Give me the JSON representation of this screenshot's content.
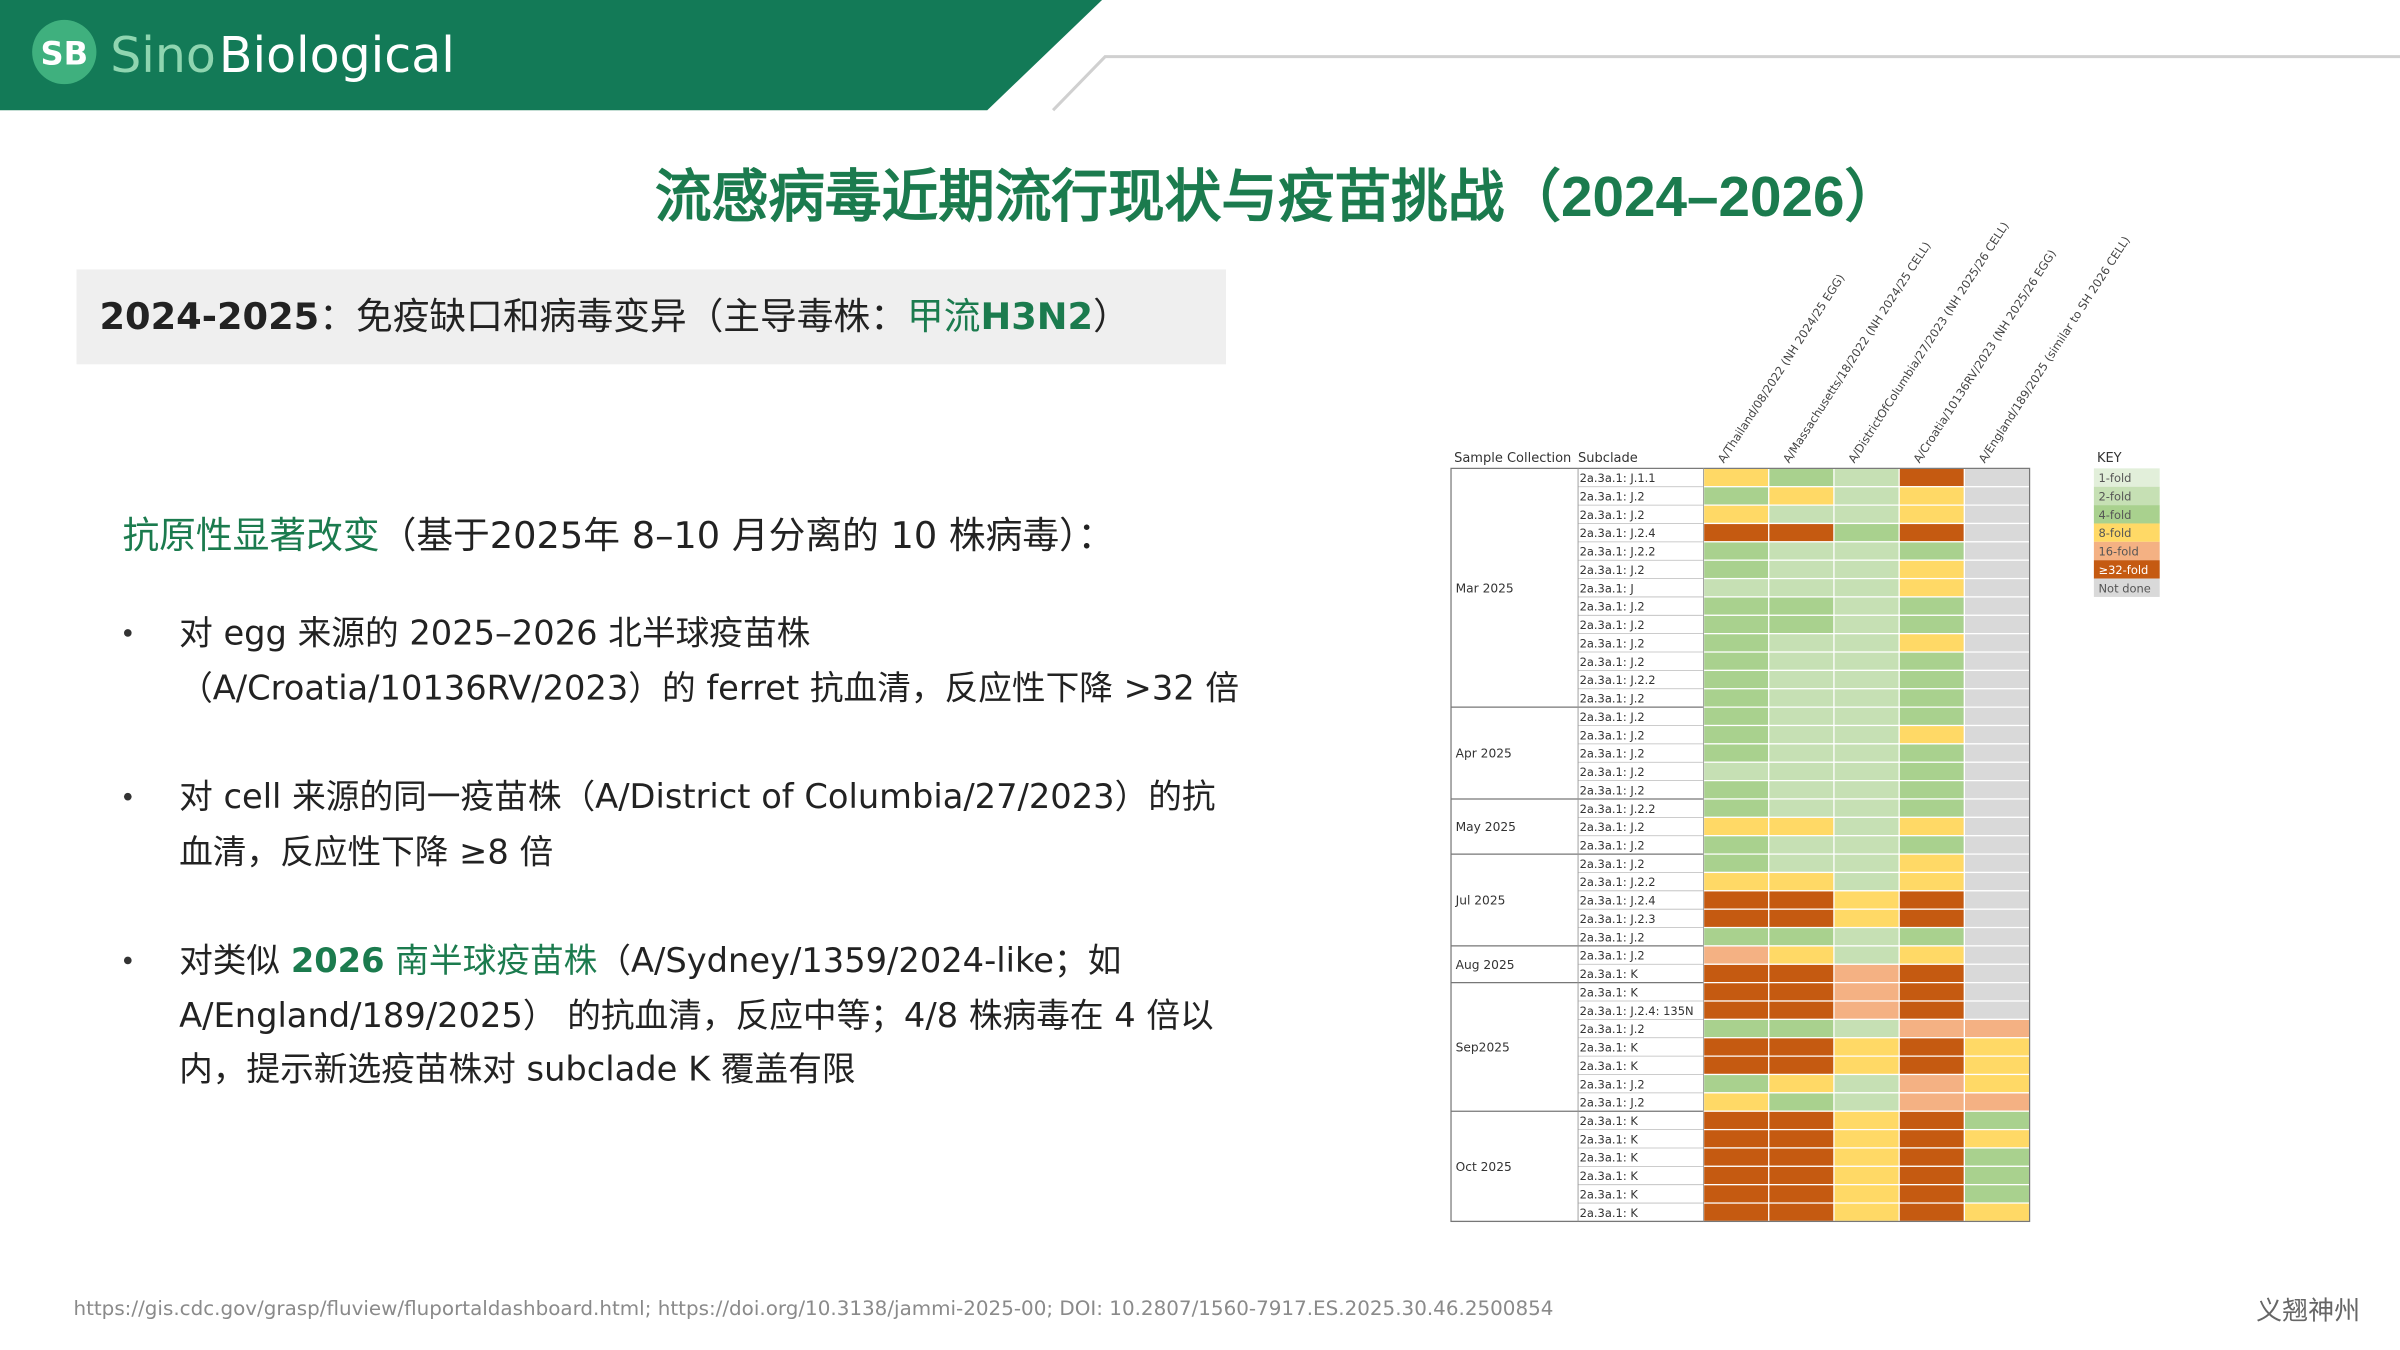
{
  "header": {
    "logo_badge": "SB",
    "logo_sino": "Sino",
    "logo_bio": "Biological"
  },
  "title": {
    "text": "流感病毒近期流行现状与疫苗挑战（",
    "years": "2024–2026",
    "close": "）"
  },
  "banner": [
    {
      "text": "2024-2025",
      "style": "bold"
    },
    {
      "text": "：免疫缺口和病毒变异（主导毒株：",
      "style": "normal"
    },
    {
      "text": "甲流",
      "style": "green"
    },
    {
      "text": "H3N2",
      "style": "bold-green"
    },
    {
      "text": "）",
      "style": "normal"
    }
  ],
  "subheading": [
    {
      "text": "抗原性显著改变",
      "style": "green"
    },
    {
      "text": "（基于2025年 8–10 月分离的 10 株病毒）：",
      "style": "normal"
    }
  ],
  "bullets": [
    {
      "lines": [
        [
          {
            "text": "对 egg 来源的 2025–2026 北半球疫苗株",
            "style": "normal"
          }
        ],
        [
          {
            "text": "（A/Croatia/10136RV/2023）的 ferret 抗血清，反应性下降 >32 倍",
            "style": "normal"
          }
        ]
      ]
    },
    {
      "lines": [
        [
          {
            "text": "对 cell 来源的同一疫苗株（A/District of Columbia/27/2023）的抗",
            "style": "normal"
          }
        ],
        [
          {
            "text": "血清，反应性下降 ≥8 倍",
            "style": "normal"
          }
        ]
      ]
    },
    {
      "lines": [
        [
          {
            "text": "对类似 ",
            "style": "normal"
          },
          {
            "text": "2026",
            "style": "bold-green"
          },
          {
            "text": " 南半球疫苗株",
            "style": "green"
          },
          {
            "text": "（A/Sydney/1359/2024-like；如",
            "style": "normal"
          }
        ],
        [
          {
            "text": "A/England/189/2025） 的抗血清，反应中等；4/8 株病毒在 4 倍以",
            "style": "normal"
          }
        ],
        [
          {
            "text": "内，提示新选疫苗株对 subclade K 覆盖有限",
            "style": "normal"
          }
        ]
      ]
    }
  ],
  "heatmap": {
    "col_sample": "Sample Collection",
    "col_subclade": "Subclade",
    "columns": [
      "A/Thailand/08/2022 (NH 2024/25 EGG)",
      "A/Massachusetts/18/2022 (NH 2024/25 CELL)",
      "A/DistrictOfColumbia/27/2023 (NH 2025/26 CELL)",
      "A/Croatia/10136RV/2023 (NH 2025/26 EGG)",
      "A/England/189/2025 (similar to SH 2026 CELL)"
    ],
    "key_title": "KEY",
    "key": [
      {
        "label": "1-fold",
        "color": "#e2efda"
      },
      {
        "label": "2-fold",
        "color": "#c6e0b4"
      },
      {
        "label": "4-fold",
        "color": "#a9d18e"
      },
      {
        "label": "8-fold",
        "color": "#ffd966"
      },
      {
        "label": "16-fold",
        "color": "#f4b183"
      },
      {
        "label": "≥32-fold",
        "color": "#c55a11"
      },
      {
        "label": "Not done",
        "color": "#d9d9d9"
      }
    ],
    "groups": [
      {
        "label": "Mar 2025",
        "rows": [
          {
            "subclade": "2a.3a.1: J.1.1",
            "cells": [
              3,
              2,
              1,
              5,
              6
            ]
          },
          {
            "subclade": "2a.3a.1: J.2",
            "cells": [
              2,
              3,
              1,
              3,
              6
            ]
          },
          {
            "subclade": "2a.3a.1: J.2",
            "cells": [
              3,
              1,
              1,
              3,
              6
            ]
          },
          {
            "subclade": "2a.3a.1: J.2.4",
            "cells": [
              5,
              5,
              2,
              5,
              6
            ]
          },
          {
            "subclade": "2a.3a.1: J.2.2",
            "cells": [
              2,
              1,
              1,
              2,
              6
            ]
          },
          {
            "subclade": "2a.3a.1: J.2",
            "cells": [
              2,
              1,
              1,
              3,
              6
            ]
          },
          {
            "subclade": "2a.3a.1: J",
            "cells": [
              1,
              1,
              1,
              3,
              6
            ]
          },
          {
            "subclade": "2a.3a.1: J.2",
            "cells": [
              2,
              2,
              1,
              2,
              6
            ]
          },
          {
            "subclade": "2a.3a.1: J.2",
            "cells": [
              2,
              2,
              1,
              2,
              6
            ]
          },
          {
            "subclade": "2a.3a.1: J.2",
            "cells": [
              2,
              1,
              1,
              3,
              6
            ]
          },
          {
            "subclade": "2a.3a.1: J.2",
            "cells": [
              2,
              1,
              1,
              2,
              6
            ]
          },
          {
            "subclade": "2a.3a.1: J.2.2",
            "cells": [
              2,
              1,
              1,
              2,
              6
            ]
          },
          {
            "subclade": "2a.3a.1: J.2",
            "cells": [
              2,
              1,
              1,
              2,
              6
            ]
          }
        ]
      },
      {
        "label": "Apr 2025",
        "rows": [
          {
            "subclade": "2a.3a.1: J.2",
            "cells": [
              2,
              1,
              1,
              2,
              6
            ]
          },
          {
            "subclade": "2a.3a.1: J.2",
            "cells": [
              2,
              1,
              1,
              3,
              6
            ]
          },
          {
            "subclade": "2a.3a.1: J.2",
            "cells": [
              2,
              1,
              1,
              2,
              6
            ]
          },
          {
            "subclade": "2a.3a.1: J.2",
            "cells": [
              1,
              1,
              1,
              2,
              6
            ]
          },
          {
            "subclade": "2a.3a.1: J.2",
            "cells": [
              2,
              1,
              1,
              2,
              6
            ]
          }
        ]
      },
      {
        "label": "May 2025",
        "rows": [
          {
            "subclade": "2a.3a.1: J.2.2",
            "cells": [
              2,
              1,
              1,
              2,
              6
            ]
          },
          {
            "subclade": "2a.3a.1: J.2",
            "cells": [
              3,
              3,
              1,
              3,
              6
            ]
          },
          {
            "subclade": "2a.3a.1: J.2",
            "cells": [
              2,
              1,
              1,
              2,
              6
            ]
          }
        ]
      },
      {
        "label": "Jul 2025",
        "rows": [
          {
            "subclade": "2a.3a.1: J.2",
            "cells": [
              2,
              1,
              1,
              3,
              6
            ]
          },
          {
            "subclade": "2a.3a.1: J.2.2",
            "cells": [
              3,
              3,
              1,
              3,
              6
            ]
          },
          {
            "subclade": "2a.3a.1: J.2.4",
            "cells": [
              5,
              5,
              3,
              5,
              6
            ]
          },
          {
            "subclade": "2a.3a.1: J.2.3",
            "cells": [
              5,
              5,
              3,
              5,
              6
            ]
          },
          {
            "subclade": "2a.3a.1: J.2",
            "cells": [
              2,
              2,
              1,
              2,
              6
            ]
          }
        ]
      },
      {
        "label": "Aug 2025",
        "rows": [
          {
            "subclade": "2a.3a.1: J.2",
            "cells": [
              4,
              3,
              1,
              3,
              6
            ]
          },
          {
            "subclade": "2a.3a.1: K",
            "cells": [
              5,
              5,
              4,
              5,
              6
            ]
          }
        ]
      },
      {
        "label": "Sep2025",
        "rows": [
          {
            "subclade": "2a.3a.1: K",
            "cells": [
              5,
              5,
              4,
              5,
              6
            ]
          },
          {
            "subclade": "2a.3a.1: J.2.4: 135N",
            "cells": [
              5,
              5,
              4,
              5,
              6
            ]
          },
          {
            "subclade": "2a.3a.1: J.2",
            "cells": [
              2,
              2,
              1,
              4,
              4
            ]
          },
          {
            "subclade": "2a.3a.1: K",
            "cells": [
              5,
              5,
              3,
              5,
              3
            ]
          },
          {
            "subclade": "2a.3a.1: K",
            "cells": [
              5,
              5,
              3,
              5,
              3
            ]
          },
          {
            "subclade": "2a.3a.1: J.2",
            "cells": [
              2,
              3,
              1,
              4,
              3
            ]
          },
          {
            "subclade": "2a.3a.1: J.2",
            "cells": [
              3,
              2,
              1,
              4,
              4
            ]
          }
        ]
      },
      {
        "label": "Oct 2025",
        "rows": [
          {
            "subclade": "2a.3a.1: K",
            "cells": [
              5,
              5,
              3,
              5,
              2
            ]
          },
          {
            "subclade": "2a.3a.1: K",
            "cells": [
              5,
              5,
              3,
              5,
              3
            ]
          },
          {
            "subclade": "2a.3a.1: K",
            "cells": [
              5,
              5,
              3,
              5,
              2
            ]
          },
          {
            "subclade": "2a.3a.1: K",
            "cells": [
              5,
              5,
              3,
              5,
              2
            ]
          },
          {
            "subclade": "2a.3a.1: K",
            "cells": [
              5,
              5,
              3,
              5,
              2
            ]
          },
          {
            "subclade": "2a.3a.1: K",
            "cells": [
              5,
              5,
              3,
              5,
              3
            ]
          }
        ]
      }
    ]
  },
  "footer": {
    "source": "https://gis.cdc.gov/grasp/fluview/fluportaldashboard.html; https://doi.org/10.3138/jammi-2025-00; DOI: 10.2807/1560-7917.ES.2025.30.46.2500854",
    "brand": "义翘神州"
  }
}
